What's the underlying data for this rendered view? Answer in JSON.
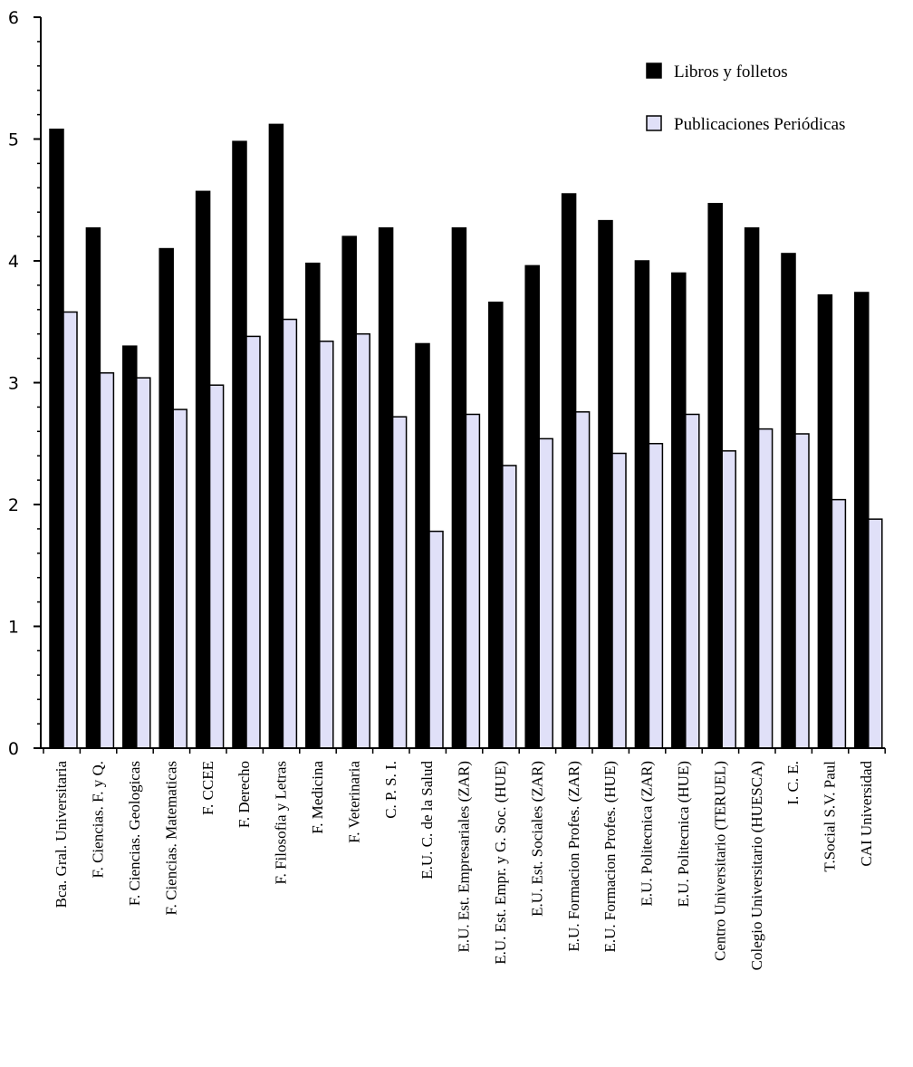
{
  "chart_data": {
    "type": "bar",
    "title": "",
    "xlabel": "",
    "ylabel": "",
    "ylim": [
      0,
      6
    ],
    "yticks": [
      "0",
      "1",
      "2",
      "3",
      "4",
      "5",
      "6"
    ],
    "grid": false,
    "legend_position": "top-right",
    "categories": [
      "Bca. Gral. Universitaria",
      "F. Ciencias. F. y Q.",
      "F. Ciencias. Geologicas",
      "F. Ciencias. Matematicas",
      "F. CCEE",
      "F. Derecho",
      "F. Filosofia y Letras",
      "F. Medicina",
      "F. Veterinaria",
      "C. P. S. I.",
      "E.U. C. de la Salud",
      "E.U. Est. Empresariales (ZAR)",
      "E.U. Est. Empr. y G. Soc. (HUE)",
      "E.U. Est. Sociales (ZAR)",
      "E.U. Formacion Profes. (ZAR)",
      "E.U. Formacion Profes. (HUE)",
      "E.U. Politecnica (ZAR)",
      "E.U. Politecnica (HUE)",
      "Centro Universitario (TERUEL)",
      "Colegio Universitario (HUESCA)",
      "I. C. E.",
      "T.Social S.V. Paul",
      "CAI Universidad"
    ],
    "series": [
      {
        "name": "Libros y folletos",
        "color": "#000000",
        "values": [
          5.08,
          4.27,
          3.3,
          4.1,
          4.57,
          4.98,
          5.12,
          3.98,
          4.2,
          4.27,
          3.32,
          4.27,
          3.66,
          3.96,
          4.55,
          4.33,
          4.0,
          3.9,
          4.47,
          4.27,
          4.06,
          3.72,
          3.74
        ]
      },
      {
        "name": "Publicaciones Periódicas",
        "color": "#e0e0f8",
        "values": [
          3.58,
          3.08,
          3.04,
          2.78,
          2.98,
          3.38,
          3.52,
          3.34,
          3.4,
          2.72,
          1.78,
          2.74,
          2.32,
          2.54,
          2.76,
          2.42,
          2.5,
          2.74,
          2.44,
          2.62,
          2.58,
          2.04,
          1.88
        ]
      }
    ]
  }
}
